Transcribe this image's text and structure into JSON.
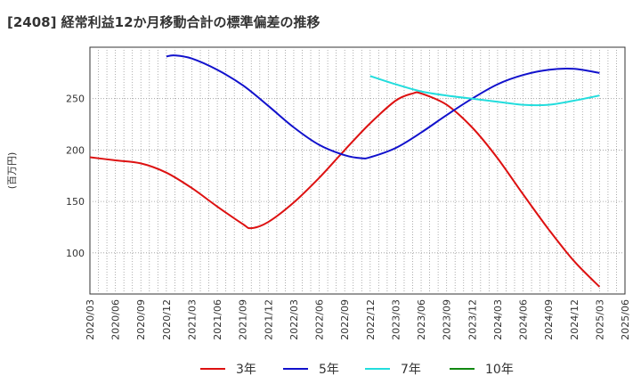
{
  "chart_data": {
    "type": "line",
    "title": "[2408]  経常利益12か月移動合計の標準偏差の推移",
    "ylabel": "(百万円)",
    "xlabel": "",
    "x_ticks": [
      "2020/03",
      "2020/06",
      "2020/09",
      "2020/12",
      "2021/03",
      "2021/06",
      "2021/09",
      "2021/12",
      "2022/03",
      "2022/06",
      "2022/09",
      "2022/12",
      "2023/03",
      "2023/06",
      "2023/09",
      "2023/12",
      "2024/03",
      "2024/06",
      "2024/09",
      "2024/12",
      "2025/03",
      "2025/06"
    ],
    "y_ticks": [
      100,
      150,
      200,
      250
    ],
    "ylim": [
      60,
      300
    ],
    "grid": true,
    "legend_position": "bottom",
    "series": [
      {
        "name": "3年",
        "color": "#dd1111",
        "x": [
          "2020/03",
          "2020/06",
          "2020/09",
          "2020/12",
          "2021/03",
          "2021/06",
          "2021/09",
          "2021/10",
          "2021/12",
          "2022/03",
          "2022/06",
          "2022/09",
          "2022/12",
          "2023/03",
          "2023/05",
          "2023/06",
          "2023/09",
          "2023/12",
          "2024/03",
          "2024/06",
          "2024/09",
          "2024/12",
          "2025/03"
        ],
        "values": [
          193,
          190,
          187,
          178,
          163,
          145,
          128,
          124,
          130,
          149,
          173,
          200,
          226,
          248,
          255,
          255,
          244,
          222,
          192,
          157,
          123,
          92,
          67
        ]
      },
      {
        "name": "5年",
        "color": "#1111cc",
        "x": [
          "2020/12",
          "2021/01",
          "2021/03",
          "2021/06",
          "2021/09",
          "2021/12",
          "2022/03",
          "2022/06",
          "2022/09",
          "2022/11",
          "2022/12",
          "2023/03",
          "2023/06",
          "2023/09",
          "2023/12",
          "2024/03",
          "2024/06",
          "2024/09",
          "2024/12",
          "2025/03"
        ],
        "values": [
          291,
          292,
          289,
          278,
          263,
          243,
          222,
          205,
          195,
          192,
          193,
          202,
          217,
          234,
          250,
          264,
          273,
          278,
          279,
          275
        ]
      },
      {
        "name": "7年",
        "color": "#22dddd",
        "x": [
          "2022/12",
          "2023/03",
          "2023/06",
          "2023/09",
          "2023/12",
          "2024/03",
          "2024/06",
          "2024/09",
          "2024/12",
          "2025/03"
        ],
        "values": [
          272,
          264,
          257,
          253,
          250,
          247,
          244,
          244,
          248,
          253
        ]
      },
      {
        "name": "10年",
        "color": "#118811",
        "x": [],
        "values": []
      }
    ]
  }
}
